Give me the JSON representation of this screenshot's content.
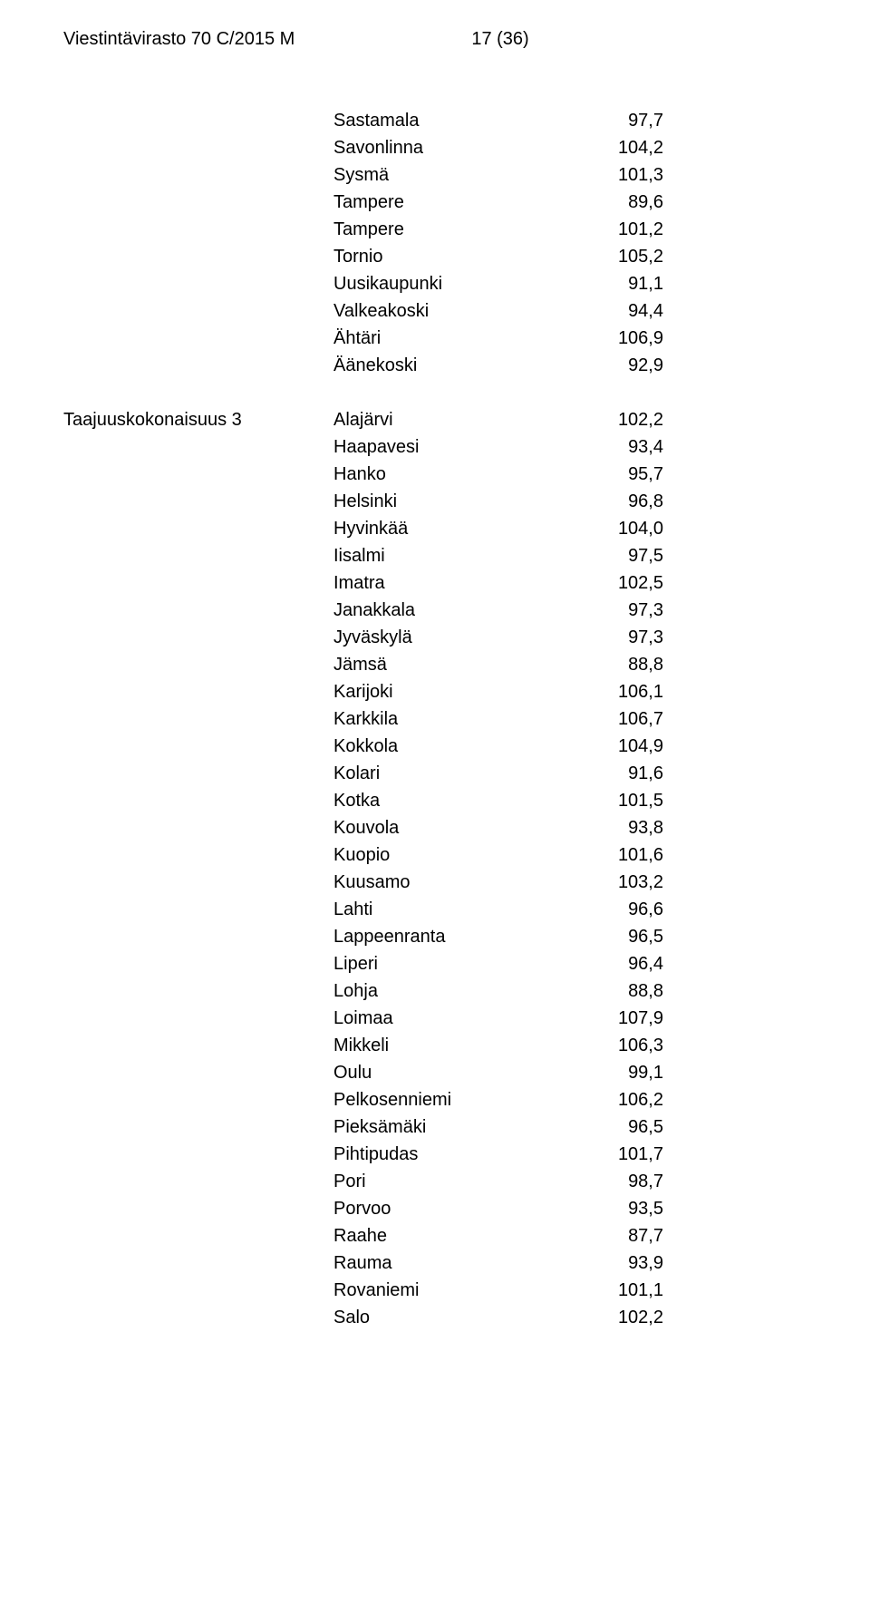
{
  "header": {
    "left": "Viestintävirasto 70 C/2015 M",
    "right": "17 (36)"
  },
  "group1": {
    "rows": [
      {
        "name": "Sastamala",
        "value": "97,7"
      },
      {
        "name": "Savonlinna",
        "value": "104,2"
      },
      {
        "name": "Sysmä",
        "value": "101,3"
      },
      {
        "name": "Tampere",
        "value": "89,6"
      },
      {
        "name": "Tampere",
        "value": "101,2"
      },
      {
        "name": "Tornio",
        "value": "105,2"
      },
      {
        "name": "Uusikaupunki",
        "value": "91,1"
      },
      {
        "name": "Valkeakoski",
        "value": "94,4"
      },
      {
        "name": "Ähtäri",
        "value": "106,9"
      },
      {
        "name": "Äänekoski",
        "value": "92,9"
      }
    ]
  },
  "group2": {
    "label": "Taajuuskokonaisuus 3",
    "rows": [
      {
        "name": "Alajärvi",
        "value": "102,2"
      },
      {
        "name": "Haapavesi",
        "value": "93,4"
      },
      {
        "name": "Hanko",
        "value": "95,7"
      },
      {
        "name": "Helsinki",
        "value": "96,8"
      },
      {
        "name": "Hyvinkää",
        "value": "104,0"
      },
      {
        "name": "Iisalmi",
        "value": "97,5"
      },
      {
        "name": "Imatra",
        "value": "102,5"
      },
      {
        "name": "Janakkala",
        "value": "97,3"
      },
      {
        "name": "Jyväskylä",
        "value": "97,3"
      },
      {
        "name": "Jämsä",
        "value": "88,8"
      },
      {
        "name": "Karijoki",
        "value": "106,1"
      },
      {
        "name": "Karkkila",
        "value": "106,7"
      },
      {
        "name": "Kokkola",
        "value": "104,9"
      },
      {
        "name": "Kolari",
        "value": "91,6"
      },
      {
        "name": "Kotka",
        "value": "101,5"
      },
      {
        "name": "Kouvola",
        "value": "93,8"
      },
      {
        "name": "Kuopio",
        "value": "101,6"
      },
      {
        "name": "Kuusamo",
        "value": "103,2"
      },
      {
        "name": "Lahti",
        "value": "96,6"
      },
      {
        "name": "Lappeenranta",
        "value": "96,5"
      },
      {
        "name": "Liperi",
        "value": "96,4"
      },
      {
        "name": "Lohja",
        "value": "88,8"
      },
      {
        "name": "Loimaa",
        "value": "107,9"
      },
      {
        "name": "Mikkeli",
        "value": "106,3"
      },
      {
        "name": "Oulu",
        "value": "99,1"
      },
      {
        "name": "Pelkosenniemi",
        "value": "106,2"
      },
      {
        "name": "Pieksämäki",
        "value": "96,5"
      },
      {
        "name": "Pihtipudas",
        "value": "101,7"
      },
      {
        "name": "Pori",
        "value": "98,7"
      },
      {
        "name": "Porvoo",
        "value": "93,5"
      },
      {
        "name": "Raahe",
        "value": "87,7"
      },
      {
        "name": "Rauma",
        "value": "93,9"
      },
      {
        "name": "Rovaniemi",
        "value": "101,1"
      },
      {
        "name": "Salo",
        "value": "102,2"
      }
    ]
  }
}
